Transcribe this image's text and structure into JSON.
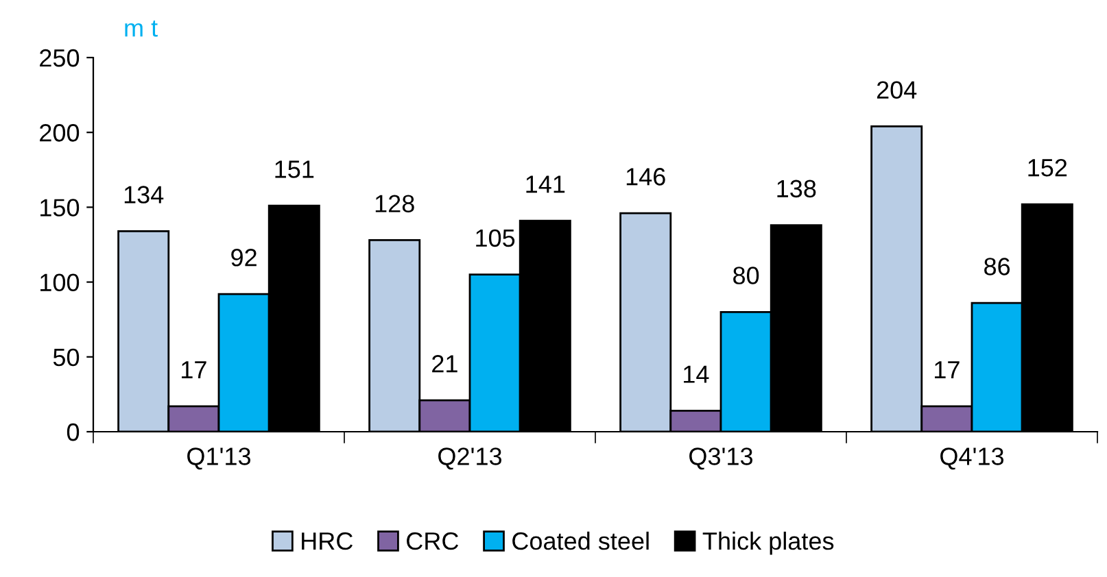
{
  "chart_data": {
    "type": "bar",
    "ylabel": "m t",
    "categories": [
      "Q1'13",
      "Q2'13",
      "Q3'13",
      "Q4'13"
    ],
    "series": [
      {
        "name": "HRC",
        "color": "#b9cde5",
        "values": [
          134,
          128,
          146,
          204
        ]
      },
      {
        "name": "CRC",
        "color": "#8064a2",
        "values": [
          17,
          21,
          14,
          17
        ]
      },
      {
        "name": "Coated steel",
        "color": "#00b0f0",
        "values": [
          92,
          105,
          80,
          86
        ]
      },
      {
        "name": "Thick plates",
        "color": "#000000",
        "values": [
          151,
          141,
          138,
          152
        ]
      }
    ],
    "ylim": [
      0,
      250
    ],
    "yticks": [
      0,
      50,
      100,
      150,
      200,
      250
    ],
    "data_labels": true,
    "grid": false,
    "legend": "bottom"
  }
}
